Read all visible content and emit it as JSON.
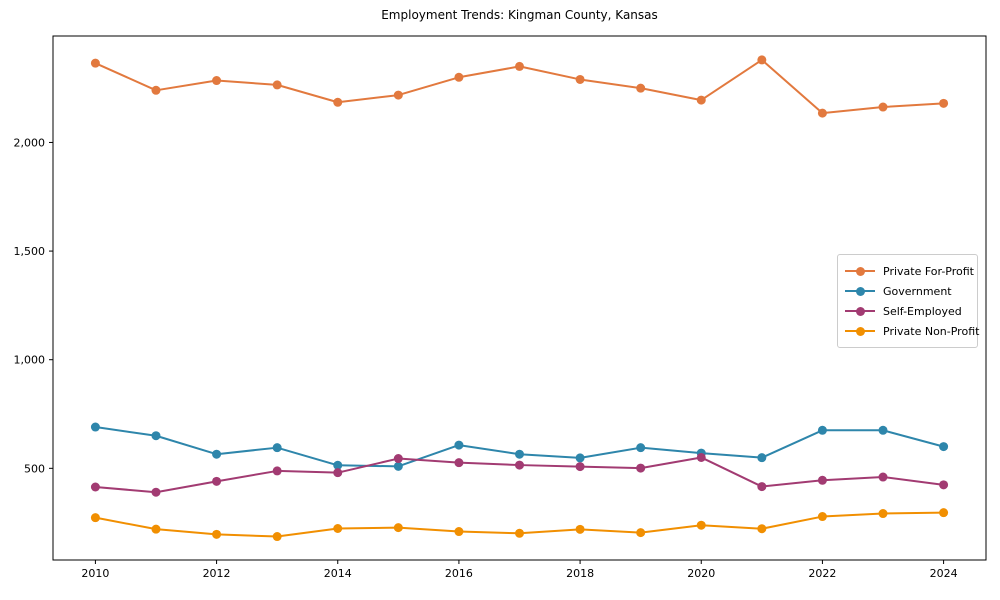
{
  "figure": {
    "title": "Employment Trends: Kingman County, Kansas"
  },
  "chart_data": {
    "type": "line",
    "title": "Employment Trends: Kingman County, Kansas",
    "xlabel": "",
    "ylabel": "",
    "grid": false,
    "legend_position": "center-right",
    "x": [
      2010,
      2011,
      2012,
      2013,
      2014,
      2015,
      2016,
      2017,
      2018,
      2019,
      2020,
      2021,
      2022,
      2023,
      2024
    ],
    "x_ticks": [
      2010,
      2012,
      2014,
      2016,
      2018,
      2020,
      2022,
      2024
    ],
    "x_tick_labels": [
      "2010",
      "2012",
      "2014",
      "2016",
      "2018",
      "2020",
      "2022",
      "2024"
    ],
    "y_ticks": [
      500,
      1000,
      1500,
      2000
    ],
    "y_tick_labels": [
      "500",
      "1,000",
      "1,500",
      "2,000"
    ],
    "xlim": [
      2009.3,
      2024.7
    ],
    "ylim": [
      78,
      2490
    ],
    "series": [
      {
        "name": "Private For-Profit",
        "color": "#E2793E",
        "values": [
          2365,
          2240,
          2285,
          2265,
          2185,
          2218,
          2300,
          2350,
          2290,
          2250,
          2195,
          2380,
          2135,
          2163,
          2180
        ]
      },
      {
        "name": "Government",
        "color": "#2E86AB",
        "values": [
          690,
          650,
          565,
          595,
          514,
          509,
          607,
          565,
          548,
          595,
          570,
          549,
          675,
          675,
          600
        ]
      },
      {
        "name": "Self-Employed",
        "color": "#A23B72",
        "values": [
          414,
          390,
          440,
          488,
          480,
          545,
          526,
          515,
          508,
          501,
          550,
          416,
          445,
          460,
          424
        ]
      },
      {
        "name": "Private Non-Profit",
        "color": "#F18F01",
        "values": [
          273,
          220,
          196,
          186,
          223,
          227,
          209,
          201,
          219,
          204,
          238,
          222,
          278,
          292,
          296
        ]
      }
    ]
  }
}
